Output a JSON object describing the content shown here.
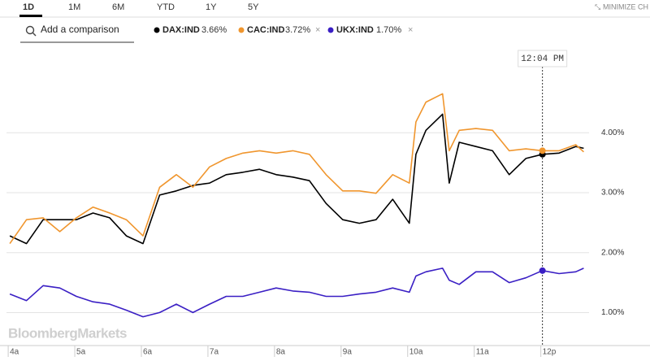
{
  "tabs": [
    "1D",
    "1M",
    "6M",
    "YTD",
    "1Y",
    "5Y"
  ],
  "active_tab": 0,
  "minimize": "MINIMIZE CH",
  "search_placeholder": "Add a comparison",
  "watermark": "BloombergMarkets",
  "chart_data": {
    "type": "line",
    "x": [
      4.0,
      4.25,
      4.5,
      4.75,
      5.0,
      5.25,
      5.5,
      5.75,
      6.0,
      6.25,
      6.5,
      6.75,
      7.0,
      7.25,
      7.5,
      7.75,
      8.0,
      8.25,
      8.5,
      8.75,
      9.0,
      9.25,
      9.5,
      9.75,
      10.0,
      10.1,
      10.25,
      10.5,
      10.6,
      10.75,
      11.0,
      11.25,
      11.5,
      11.75,
      12.0,
      12.25,
      12.5,
      12.62
    ],
    "series": [
      {
        "name": "DAX:IND",
        "legend_label": "3.66%",
        "color": "#000000",
        "values": [
          2.28,
          2.15,
          2.55,
          2.55,
          2.55,
          2.66,
          2.58,
          2.28,
          2.15,
          2.96,
          3.03,
          3.12,
          3.16,
          3.3,
          3.34,
          3.39,
          3.3,
          3.26,
          3.2,
          2.82,
          2.55,
          2.49,
          2.55,
          2.89,
          2.49,
          3.64,
          4.04,
          4.31,
          3.16,
          3.84,
          3.77,
          3.7,
          3.3,
          3.57,
          3.64,
          3.66,
          3.77,
          3.74
        ]
      },
      {
        "name": "CAC:IND",
        "legend_label": "3.72%",
        "color": "#f0962e",
        "values": [
          2.15,
          2.55,
          2.58,
          2.35,
          2.58,
          2.76,
          2.66,
          2.55,
          2.28,
          3.09,
          3.3,
          3.09,
          3.43,
          3.57,
          3.66,
          3.7,
          3.66,
          3.7,
          3.64,
          3.3,
          3.03,
          3.03,
          2.99,
          3.3,
          3.16,
          4.18,
          4.51,
          4.65,
          3.7,
          4.04,
          4.07,
          4.04,
          3.7,
          3.73,
          3.7,
          3.7,
          3.8,
          3.68
        ]
      },
      {
        "name": "UKX:IND",
        "legend_label": "1.70%",
        "color": "#3a1fc4",
        "values": [
          1.31,
          1.2,
          1.45,
          1.41,
          1.27,
          1.18,
          1.14,
          1.04,
          0.93,
          1.0,
          1.14,
          1.0,
          1.14,
          1.27,
          1.27,
          1.34,
          1.41,
          1.36,
          1.34,
          1.27,
          1.27,
          1.31,
          1.34,
          1.41,
          1.34,
          1.61,
          1.68,
          1.74,
          1.54,
          1.47,
          1.68,
          1.68,
          1.5,
          1.58,
          1.7,
          1.65,
          1.68,
          1.74
        ]
      }
    ],
    "xlim": [
      3.95,
      12.7
    ],
    "xticks": [
      {
        "value": 4,
        "label": "4a"
      },
      {
        "value": 5,
        "label": "5a"
      },
      {
        "value": 6,
        "label": "6a"
      },
      {
        "value": 7,
        "label": "7a"
      },
      {
        "value": 8,
        "label": "8a"
      },
      {
        "value": 9,
        "label": "9a"
      },
      {
        "value": 10,
        "label": "10a"
      },
      {
        "value": 11,
        "label": "11a"
      },
      {
        "value": 12,
        "label": "12p"
      }
    ],
    "ylim": [
      0.45,
      5.4
    ],
    "yticks": [
      {
        "value": 1,
        "label": "1.00%"
      },
      {
        "value": 2,
        "label": "2.00%"
      },
      {
        "value": 3,
        "label": "3.00%"
      },
      {
        "value": 4,
        "label": "4.00%"
      }
    ],
    "grid": true,
    "cursor_x": 12.0,
    "cursor_label": "12:04 PM"
  }
}
